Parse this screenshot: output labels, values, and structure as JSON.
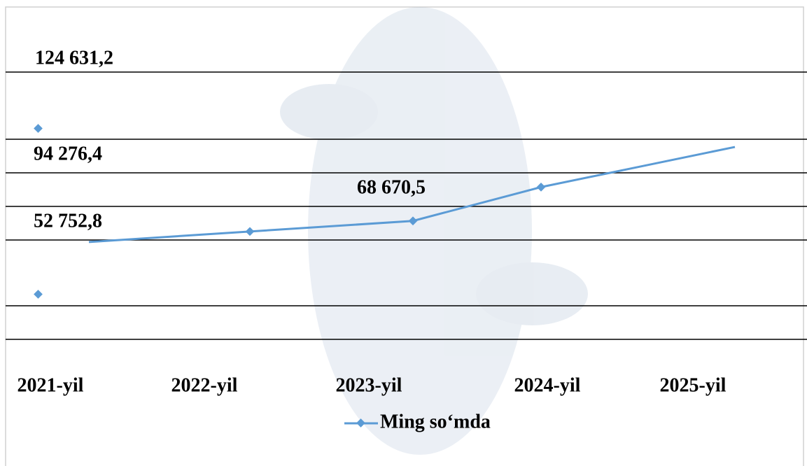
{
  "chart_data": {
    "type": "line",
    "categories": [
      "2021-yil",
      "2022-yil",
      "2023-yil",
      "2024-yil",
      "2025-yil"
    ],
    "series": [
      {
        "name": "Ming so‘mda",
        "color": "#5b9bd5",
        "values": [
          52752.8,
          60700,
          68670.5,
          94276.4,
          124631.2
        ],
        "value_labels": [
          "52 752,8",
          null,
          "68 670,5",
          "94 276,4",
          "124 631,2"
        ]
      }
    ],
    "ylim": [
      0,
      140000
    ]
  }
}
